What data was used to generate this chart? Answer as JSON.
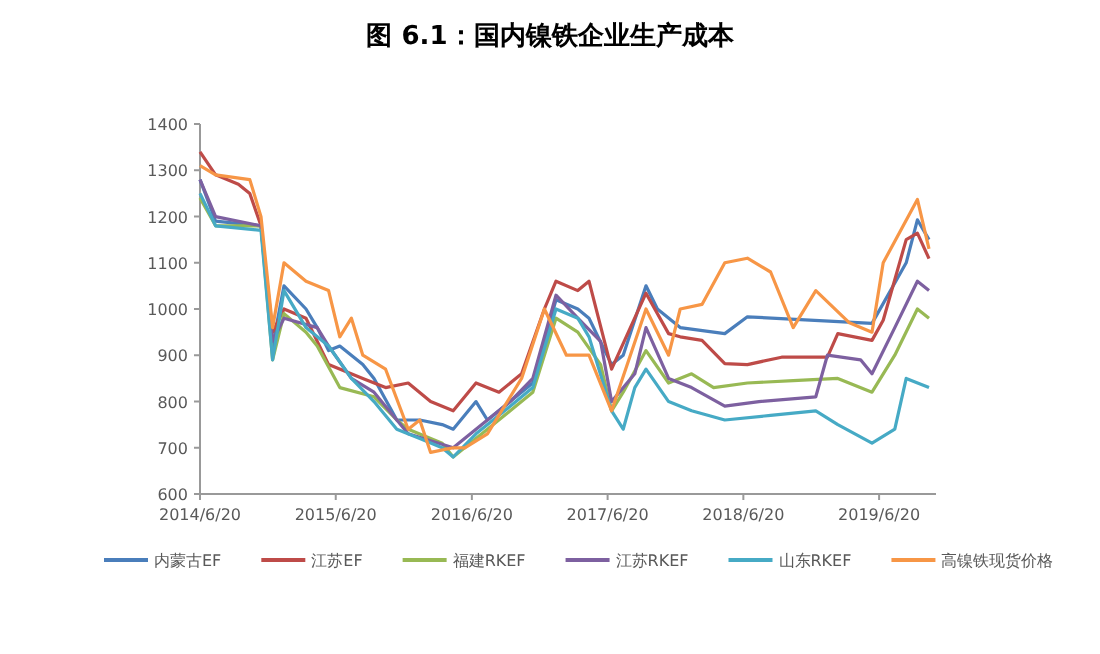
{
  "chart_data": {
    "type": "line",
    "title": "图 6.1：国内镍铁企业生产成本",
    "legend": "bottom",
    "grid": false,
    "xlim": [
      "2014-06-20",
      "2019-11-20"
    ],
    "xticks": [
      {
        "value": "2014-06-20",
        "label": "2014/6/20"
      },
      {
        "value": "2015-06-20",
        "label": "2015/6/20"
      },
      {
        "value": "2016-06-20",
        "label": "2016/6/20"
      },
      {
        "value": "2017-06-20",
        "label": "2017/6/20"
      },
      {
        "value": "2018-06-20",
        "label": "2018/6/20"
      },
      {
        "value": "2019-06-20",
        "label": "2019/6/20"
      }
    ],
    "ylim": [
      600,
      1400
    ],
    "yticks": [
      600,
      700,
      800,
      900,
      1000,
      1100,
      1200,
      1300,
      1400
    ],
    "series": [
      {
        "name": "内蒙古EF",
        "color": "#4a7ebb",
        "x": [
          "2014-06-20",
          "2014-08",
          "2014-12",
          "2015-01",
          "2015-02",
          "2015-04",
          "2015-05",
          "2015-06",
          "2015-07",
          "2015-09",
          "2015-10",
          "2015-12",
          "2016-02",
          "2016-04",
          "2016-05",
          "2016-07",
          "2016-08",
          "2016-10",
          "2016-12",
          "2017-02",
          "2017-04",
          "2017-05",
          "2017-07",
          "2017-08",
          "2017-10",
          "2017-11",
          "2018-01",
          "2018-05",
          "2018-07",
          "2019-06",
          "2019-09",
          "2019-10",
          "2019-11"
        ],
        "values": [
          1280,
          1190,
          1180,
          920,
          1050,
          1000,
          960,
          910,
          920,
          880,
          850,
          760,
          760,
          750,
          740,
          800,
          760,
          800,
          840,
          1020,
          1000,
          980,
          880,
          900,
          1050,
          1000,
          960,
          947,
          983,
          969,
          1100,
          1193,
          1150
        ]
      },
      {
        "name": "江苏EF",
        "color": "#be4b48",
        "x": [
          "2014-06-20",
          "2014-08",
          "2014-10",
          "2014-11",
          "2014-12",
          "2015-01",
          "2015-02",
          "2015-04",
          "2015-06",
          "2015-09",
          "2015-11",
          "2016-01",
          "2016-03",
          "2016-05",
          "2016-07",
          "2016-09",
          "2016-11",
          "2017-01",
          "2017-02",
          "2017-04",
          "2017-05",
          "2017-07",
          "2017-10",
          "2017-12",
          "2018-01",
          "2018-03",
          "2018-05",
          "2018-07",
          "2018-10",
          "2019-02",
          "2019-03",
          "2019-06",
          "2019-07",
          "2019-09",
          "2019-10",
          "2019-11"
        ],
        "values": [
          1340,
          1290,
          1270,
          1250,
          1180,
          950,
          1000,
          980,
          880,
          850,
          830,
          840,
          800,
          780,
          840,
          820,
          860,
          1000,
          1060,
          1040,
          1060,
          870,
          1034,
          947,
          940,
          932,
          882,
          880,
          896,
          896,
          947,
          932,
          976,
          1150,
          1164,
          1109
        ]
      },
      {
        "name": "福建RKEF",
        "color": "#98b954",
        "x": [
          "2014-06-20",
          "2014-08",
          "2014-12",
          "2015-01",
          "2015-02",
          "2015-04",
          "2015-05",
          "2015-07",
          "2015-10",
          "2015-12",
          "2016-01",
          "2016-04",
          "2016-05",
          "2016-07",
          "2016-10",
          "2016-12",
          "2017-02",
          "2017-04",
          "2017-06",
          "2017-07",
          "2017-08",
          "2017-10",
          "2017-12",
          "2018-02",
          "2018-04",
          "2018-07",
          "2018-11",
          "2019-03",
          "2019-06",
          "2019-08",
          "2019-10",
          "2019-11"
        ],
        "values": [
          1240,
          1180,
          1180,
          890,
          990,
          950,
          920,
          830,
          810,
          760,
          740,
          710,
          680,
          720,
          780,
          820,
          980,
          950,
          880,
          780,
          820,
          910,
          840,
          860,
          830,
          840,
          845,
          850,
          820,
          900,
          1000,
          980
        ]
      },
      {
        "name": "江苏RKEF",
        "color": "#7d60a0",
        "x": [
          "2014-06-20",
          "2014-08",
          "2014-12",
          "2015-01",
          "2015-02",
          "2015-05",
          "2015-06",
          "2015-08",
          "2015-10",
          "2015-12",
          "2016-01",
          "2016-05",
          "2016-07",
          "2016-10",
          "2016-12",
          "2017-02",
          "2017-04",
          "2017-06",
          "2017-07",
          "2017-09",
          "2017-10",
          "2017-12",
          "2018-02",
          "2018-05",
          "2018-08",
          "2019-01",
          "2019-02",
          "2019-05",
          "2019-06",
          "2019-08",
          "2019-10",
          "2019-11"
        ],
        "values": [
          1280,
          1200,
          1180,
          930,
          980,
          960,
          920,
          850,
          820,
          760,
          730,
          700,
          740,
          800,
          850,
          1030,
          980,
          930,
          800,
          860,
          960,
          850,
          830,
          790,
          800,
          810,
          900,
          890,
          860,
          960,
          1060,
          1040
        ]
      },
      {
        "name": "山东RKEF",
        "color": "#46aac5",
        "x": [
          "2014-06-20",
          "2014-08",
          "2014-12",
          "2015-01",
          "2015-02",
          "2015-04",
          "2015-06",
          "2015-08",
          "2015-10",
          "2015-12",
          "2016-02",
          "2016-04",
          "2016-05",
          "2016-07",
          "2016-10",
          "2016-12",
          "2017-02",
          "2017-04",
          "2017-05",
          "2017-07",
          "2017-08",
          "2017-09",
          "2017-10",
          "2017-12",
          "2018-02",
          "2018-05",
          "2018-09",
          "2019-01",
          "2019-03",
          "2019-06",
          "2019-08",
          "2019-09",
          "2019-11"
        ],
        "values": [
          1250,
          1180,
          1170,
          890,
          1040,
          960,
          920,
          850,
          800,
          740,
          720,
          700,
          680,
          730,
          790,
          830,
          1000,
          980,
          940,
          780,
          740,
          830,
          870,
          800,
          780,
          760,
          770,
          780,
          750,
          710,
          740,
          850,
          830
        ]
      },
      {
        "name": "高镍铁现货价格",
        "color": "#f79646",
        "x": [
          "2014-06-20",
          "2014-08",
          "2014-11",
          "2014-12",
          "2015-01",
          "2015-02",
          "2015-04",
          "2015-06",
          "2015-07",
          "2015-08",
          "2015-09",
          "2015-11",
          "2016-01",
          "2016-02",
          "2016-03",
          "2016-05",
          "2016-06",
          "2016-08",
          "2016-11",
          "2017-01",
          "2017-03",
          "2017-05",
          "2017-07",
          "2017-10",
          "2017-12",
          "2018-01",
          "2018-03",
          "2018-05",
          "2018-07",
          "2018-09",
          "2018-11",
          "2019-01",
          "2019-04",
          "2019-06",
          "2019-07",
          "2019-10",
          "2019-11"
        ],
        "values": [
          1310,
          1290,
          1280,
          1200,
          960,
          1100,
          1060,
          1040,
          940,
          980,
          900,
          870,
          740,
          760,
          690,
          700,
          700,
          730,
          850,
          1000,
          900,
          900,
          780,
          1000,
          900,
          1000,
          1010,
          1100,
          1110,
          1080,
          960,
          1040,
          970,
          950,
          1100,
          1237,
          1130
        ]
      }
    ]
  }
}
